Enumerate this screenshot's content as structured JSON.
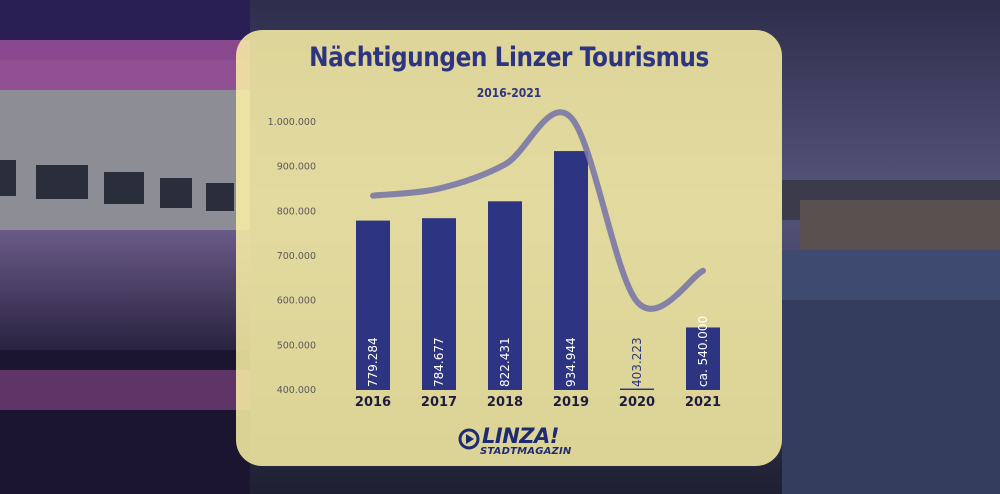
{
  "colors": {
    "bar": "#2d3582",
    "curve": "#7a78a8",
    "panel": "#faf0a5",
    "title": "#2d3582",
    "logo": "#1e2b73"
  },
  "logo": {
    "word": "LINZA!",
    "sub": "STADTMAGAZIN",
    "icon": "play-circle-icon"
  },
  "chart_data": {
    "type": "bar",
    "title": "Nächtigungen Linzer Tourismus",
    "subtitle": "2016-2021",
    "xlabel": "",
    "ylabel": "",
    "ylim": [
      400000,
      1000000
    ],
    "yticks": [
      400000,
      500000,
      600000,
      700000,
      800000,
      900000,
      1000000
    ],
    "ytick_labels": [
      "400.000",
      "500.000",
      "600.000",
      "700.000",
      "800.000",
      "900.000",
      "1.000.000"
    ],
    "categories": [
      "2016",
      "2017",
      "2018",
      "2019",
      "2020",
      "2021"
    ],
    "values": [
      779284,
      784677,
      822431,
      934944,
      403223,
      540000
    ],
    "data_labels": [
      "779.284",
      "784.677",
      "822.431",
      "934.944",
      "403.223",
      "ca. 540.000"
    ],
    "grid": false,
    "legend": "none",
    "trend_line": {
      "type": "line",
      "style": "smoothed decorative trend",
      "x": [
        "2016",
        "2017",
        "2018",
        "2019",
        "2020",
        "2021"
      ],
      "values": [
        835000,
        851000,
        905000,
        1010000,
        598000,
        667000
      ]
    }
  }
}
